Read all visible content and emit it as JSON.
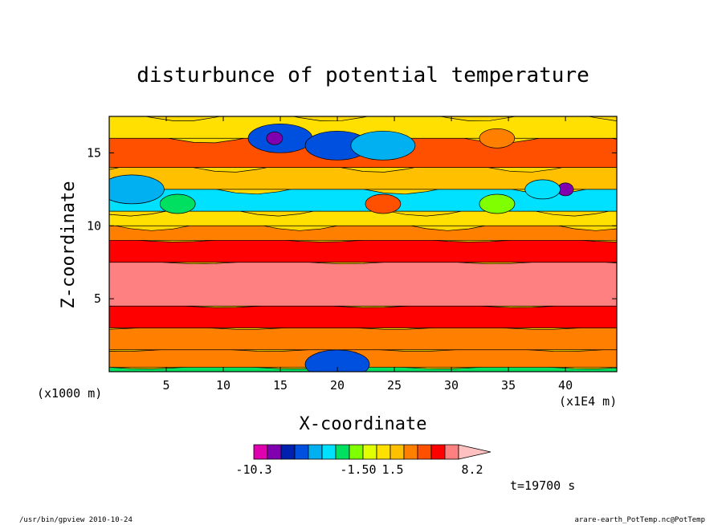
{
  "chart_data": {
    "type": "heatmap",
    "title": "disturbunce of potential temperature",
    "xlabel": "X-coordinate",
    "ylabel": "Z-coordinate",
    "x_unit": "(x1E4 m)",
    "y_unit": "(x1000 m)",
    "xlim": [
      0,
      44.5
    ],
    "ylim": [
      0,
      17.5
    ],
    "x_ticks": [
      "5",
      "10",
      "15",
      "20",
      "25",
      "30",
      "35",
      "40"
    ],
    "y_ticks": [
      "5",
      "10",
      "15"
    ],
    "x_tick_values": [
      5,
      10,
      15,
      20,
      25,
      30,
      35,
      40
    ],
    "y_tick_values": [
      5,
      10,
      15
    ],
    "colorbar": {
      "labels": [
        "-10.3",
        "-1.50",
        "1.5",
        "8.2"
      ],
      "min": -10.3,
      "max": 8.2,
      "colors": [
        "#e000b0",
        "#8000b0",
        "#0020b0",
        "#0050e0",
        "#00b0f0",
        "#00e0ff",
        "#00e060",
        "#80ff00",
        "#e0ff00",
        "#ffe000",
        "#ffc000",
        "#ff8000",
        "#ff5000",
        "#ff0000",
        "#ff8080",
        "#ffc0c0"
      ]
    },
    "bands": [
      {
        "z": [
          0,
          0.3
        ],
        "value": -3.0
      },
      {
        "z": [
          0.3,
          1.5
        ],
        "value": 2.5
      },
      {
        "z": [
          1.5,
          3.0
        ],
        "value": 3.5
      },
      {
        "z": [
          3.0,
          4.5
        ],
        "value": 5.0
      },
      {
        "z": [
          4.5,
          7.5
        ],
        "value": 6.8
      },
      {
        "z": [
          7.5,
          9.0
        ],
        "value": 5.0
      },
      {
        "z": [
          9.0,
          10.0
        ],
        "value": 3.0
      },
      {
        "z": [
          10.0,
          11.0
        ],
        "value": 0.5
      },
      {
        "z": [
          11.0,
          12.5
        ],
        "value": -3.5
      },
      {
        "z": [
          12.5,
          14.0
        ],
        "value": 2.0
      },
      {
        "z": [
          14.0,
          16.0
        ],
        "value": 4.0
      },
      {
        "z": [
          16.0,
          17.5
        ],
        "value": 1.0
      }
    ],
    "features": [
      {
        "x": 15,
        "z": 16,
        "value": -6.0
      },
      {
        "x": 20,
        "z": 15.5,
        "value": -6.0
      },
      {
        "x": 24,
        "z": 15.5,
        "value": -5.0
      },
      {
        "x": 14.5,
        "z": 16,
        "value": -9.0
      },
      {
        "x": 40,
        "z": 12.5,
        "value": -9.0
      },
      {
        "x": 38,
        "z": 12.5,
        "value": -4.0
      },
      {
        "x": 34,
        "z": 11.5,
        "value": -2.0
      },
      {
        "x": 24,
        "z": 11.5,
        "value": 4.0
      },
      {
        "x": 34,
        "z": 16,
        "value": 3.5
      },
      {
        "x": 2,
        "z": 12.5,
        "value": -5.0
      },
      {
        "x": 6,
        "z": 11.5,
        "value": -2.5
      },
      {
        "x": 20,
        "z": 0.5,
        "value": -6.0
      }
    ]
  },
  "time_label": "t=19700 s",
  "footer_left": "/usr/bin/gpview  2010-10-24",
  "footer_right": "arare-earth_PotTemp.nc@PotTemp"
}
